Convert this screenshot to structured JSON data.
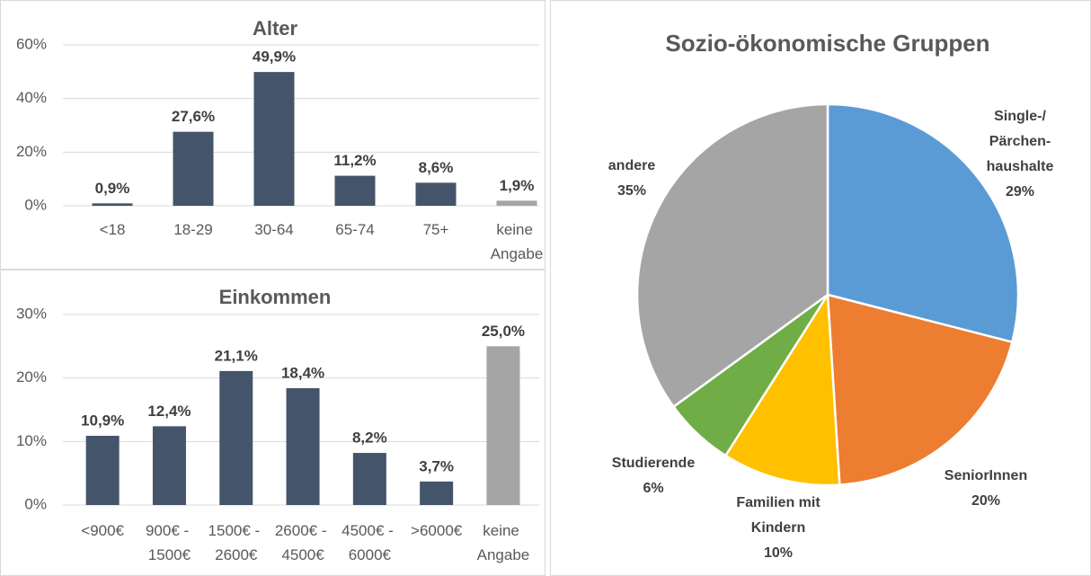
{
  "chart_data": [
    {
      "type": "bar",
      "title": "Alter",
      "categories": [
        "<18",
        "18-29",
        "30-64",
        "65-74",
        "75+",
        "keine Angabe"
      ],
      "values": [
        0.9,
        27.6,
        49.9,
        11.2,
        8.6,
        1.9
      ],
      "value_labels": [
        "0,9%",
        "27,6%",
        "49,9%",
        "11,2%",
        "8,6%",
        "1,9%"
      ],
      "colors": [
        "#44546a",
        "#44546a",
        "#44546a",
        "#44546a",
        "#44546a",
        "#a5a5a5"
      ],
      "ylim": [
        0,
        60
      ],
      "yticks": [
        {
          "value": 0,
          "label": "0%"
        },
        {
          "value": 20,
          "label": "20%"
        },
        {
          "value": 40,
          "label": "40%"
        },
        {
          "value": 60,
          "label": "60%"
        }
      ],
      "grid": true
    },
    {
      "type": "bar",
      "title": "Einkommen",
      "categories": [
        "<900€",
        "900€ - 1500€",
        "1500€ - 2600€",
        "2600€ - 4500€",
        "4500€ - 6000€",
        ">6000€",
        "keine Angabe"
      ],
      "values": [
        10.9,
        12.4,
        21.1,
        18.4,
        8.2,
        3.7,
        25.0
      ],
      "value_labels": [
        "10,9%",
        "12,4%",
        "21,1%",
        "18,4%",
        "8,2%",
        "3,7%",
        "25,0%"
      ],
      "colors": [
        "#44546a",
        "#44546a",
        "#44546a",
        "#44546a",
        "#44546a",
        "#44546a",
        "#a5a5a5"
      ],
      "ylim": [
        0,
        30
      ],
      "yticks": [
        {
          "value": 0,
          "label": "0%"
        },
        {
          "value": 10,
          "label": "10%"
        },
        {
          "value": 20,
          "label": "20%"
        },
        {
          "value": 30,
          "label": "30%"
        }
      ],
      "grid": true
    },
    {
      "type": "pie",
      "title": "Sozio-ökonomische Gruppen",
      "categories": [
        [
          "Single-/",
          "Pärchen-",
          "haushalte"
        ],
        [
          "SeniorInnen"
        ],
        [
          "Familien mit",
          "Kindern"
        ],
        [
          "Studierende"
        ],
        [
          "andere"
        ]
      ],
      "values": [
        29,
        20,
        10,
        6,
        35
      ],
      "value_labels": [
        "29%",
        "20%",
        "10%",
        "6%",
        "35%"
      ],
      "colors": [
        "#5b9bd5",
        "#ed7d31",
        "#ffc000",
        "#70ad47",
        "#a5a5a5"
      ]
    }
  ]
}
